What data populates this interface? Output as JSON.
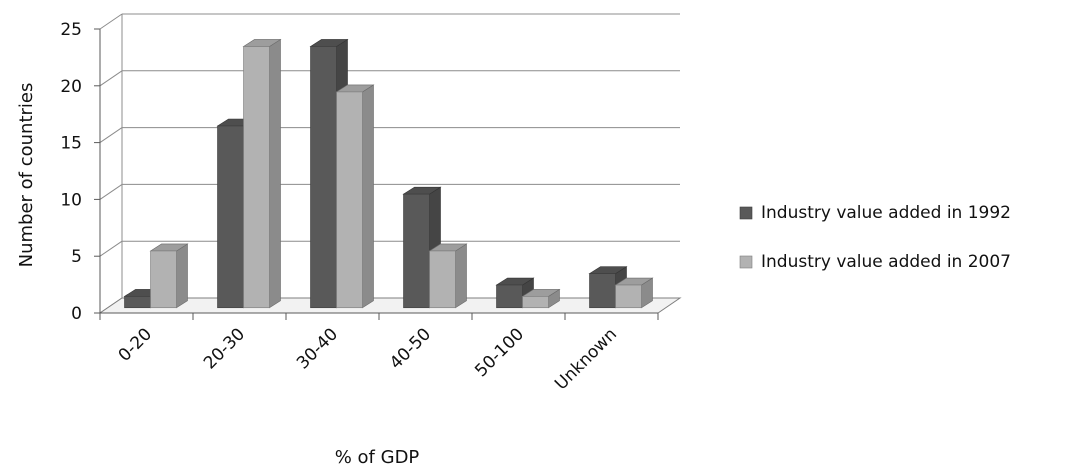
{
  "chart_data": {
    "type": "bar",
    "style": "3d-clustered-column",
    "categories": [
      "0-20",
      "20-30",
      "30-40",
      "40-50",
      "50-100",
      "Unknown"
    ],
    "series": [
      {
        "name": "Industry value added in 1992",
        "values": [
          1,
          16,
          23,
          10,
          2,
          3
        ],
        "color": "#595959"
      },
      {
        "name": "Industry value added in 2007",
        "values": [
          5,
          23,
          19,
          5,
          1,
          2
        ],
        "color": "#b2b2b2"
      }
    ],
    "xlabel": "% of GDP",
    "ylabel": "Number of countries",
    "ylim": [
      0,
      25
    ],
    "yticks": [
      0,
      5,
      10,
      15,
      20,
      25
    ],
    "grid": true,
    "legend_position": "right"
  }
}
